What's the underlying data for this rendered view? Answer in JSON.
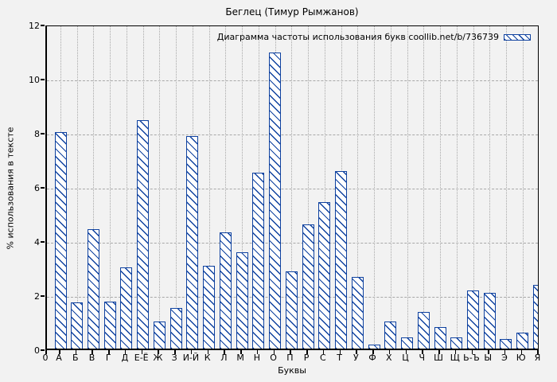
{
  "chart_data": {
    "type": "bar",
    "title": "Беглец (Тимур Рымжанов)",
    "legend": {
      "label": "Диаграмма частоты использования букв coollib.net/b/736739",
      "position": "top-right",
      "key": "hatched-bar-sample"
    },
    "xlabel": "Буквы",
    "ylabel": "% использования в тексте",
    "x_origin_label": "0",
    "categories": [
      "А",
      "Б",
      "В",
      "Г",
      "Д",
      "Е-Ё",
      "Ж",
      "З",
      "И-Й",
      "К",
      "Л",
      "М",
      "Н",
      "О",
      "П",
      "Р",
      "С",
      "Т",
      "У",
      "Ф",
      "Х",
      "Ц",
      "Ч",
      "Ш",
      "Щ",
      "Ь-Ъ",
      "Ы",
      "Э",
      "Ю",
      "Я"
    ],
    "values": [
      8.0,
      1.7,
      4.4,
      1.75,
      3.0,
      8.45,
      1.0,
      1.5,
      7.85,
      3.05,
      4.3,
      3.55,
      6.5,
      10.95,
      2.85,
      4.6,
      5.4,
      6.55,
      2.65,
      0.15,
      1.0,
      0.4,
      1.35,
      0.8,
      0.4,
      2.15,
      2.05,
      0.35,
      0.6,
      2.35
    ],
    "ylim": [
      0,
      12
    ],
    "yticks": [
      0,
      2,
      4,
      6,
      8,
      10,
      12
    ],
    "grid": true,
    "bar_hatch": "\\",
    "colors": {
      "bar_edge": "#0e419f",
      "bar_fill": "#ffffff",
      "grid": "#a8a8a8",
      "axis": "#000000",
      "background": "#f2f2f2",
      "text": "#000000"
    }
  }
}
